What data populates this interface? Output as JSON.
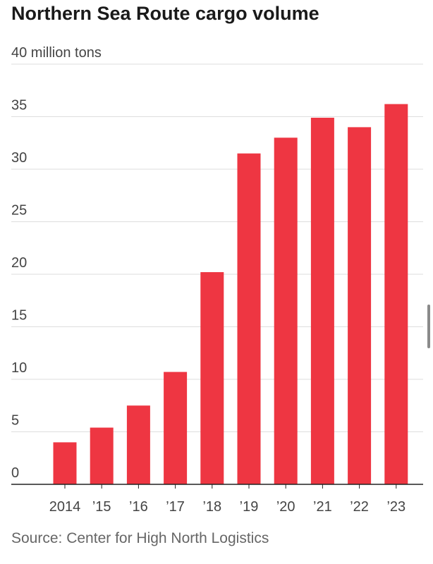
{
  "title": "Northern Sea Route cargo volume",
  "source": "Source: Center for High North Logistics",
  "chart_data": {
    "type": "bar",
    "title": "Northern Sea Route cargo volume",
    "ylabel_top_tick": "40 million tons",
    "categories": [
      "2014",
      "’15",
      "’16",
      "’17",
      "’18",
      "’19",
      "’20",
      "’21",
      "’22",
      "’23"
    ],
    "values": [
      4.0,
      5.4,
      7.5,
      10.7,
      20.2,
      31.5,
      33.0,
      34.9,
      34.0,
      36.2
    ],
    "ylim": [
      0,
      40
    ],
    "yticks": [
      0,
      5,
      10,
      15,
      20,
      25,
      30,
      35
    ],
    "ytick_labels": [
      "0",
      "5",
      "10",
      "15",
      "20",
      "25",
      "30",
      "35"
    ],
    "grid": "horizontal",
    "bar_color": "#ee3642",
    "grid_color": "#dddddd",
    "axis_color": "#222222"
  }
}
